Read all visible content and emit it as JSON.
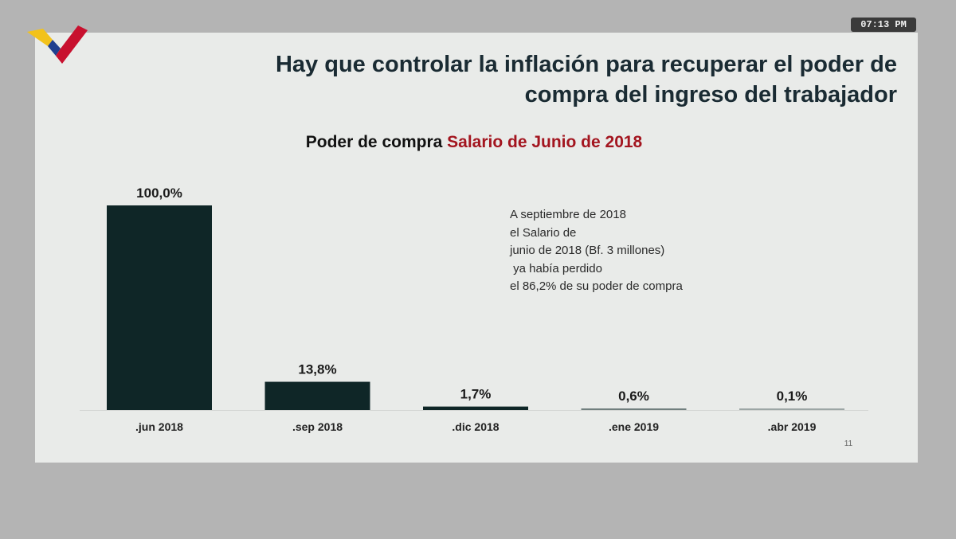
{
  "overlay": {
    "clock": "07:13 PM"
  },
  "slide": {
    "title_line1": "Hay que controlar la inflación para recuperar el poder de",
    "title_line2": "compra del ingreso del trabajador",
    "subtitle_prefix": "Poder de compra ",
    "subtitle_highlight": "Salario de Junio de 2018",
    "note_lines": [
      "A septiembre de 2018",
      "el Salario de",
      "junio de 2018 (Bf. 3 millones)",
      " ya había perdido",
      "el 86,2% de su poder de compra"
    ],
    "page_number": "11"
  },
  "colors": {
    "bar": "#0f2627",
    "highlight": "#a3151f",
    "title": "#1a2b33"
  },
  "logo": {
    "icon": "venezuela-chevron-logo"
  },
  "chart_data": {
    "type": "bar",
    "title": "Poder de compra Salario de Junio de 2018",
    "categories": [
      ".jun 2018",
      ".sep 2018",
      ".dic 2018",
      ".ene 2019",
      ".abr 2019"
    ],
    "values": [
      100.0,
      13.8,
      1.7,
      0.6,
      0.1
    ],
    "data_labels": [
      "100,0%",
      "13,8%",
      "1,7%",
      "0,6%",
      "0,1%"
    ],
    "unit": "%",
    "ylim": [
      0,
      100
    ],
    "xlabel": "",
    "ylabel": "",
    "grid": false,
    "legend": "none"
  }
}
